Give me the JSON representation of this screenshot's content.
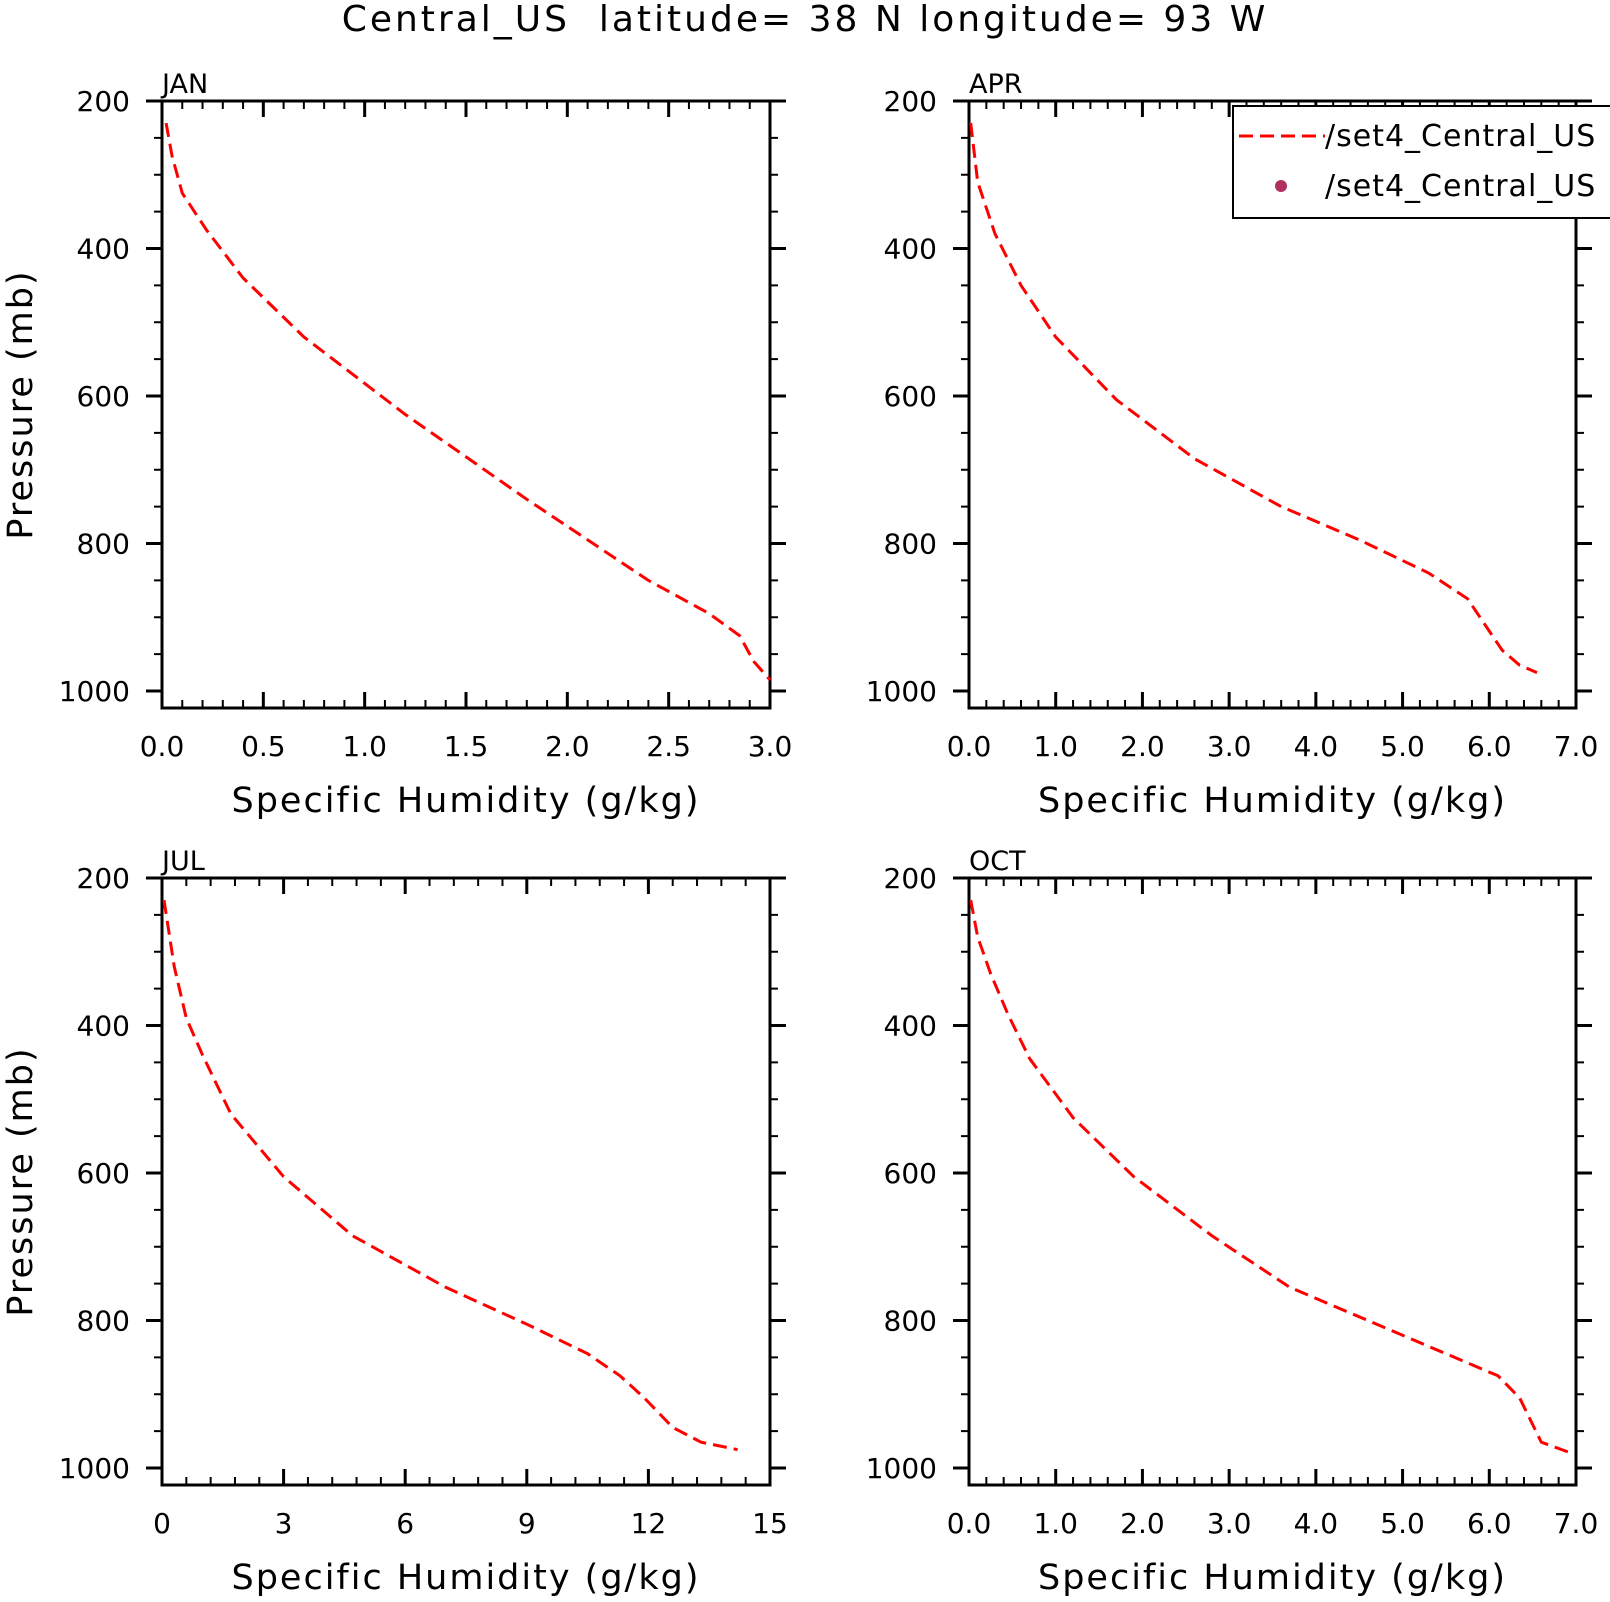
{
  "figure": {
    "title": "Central_US  latitude= 38 N longitude= 93 W"
  },
  "legend": {
    "entries": [
      {
        "label": "/set4_Central_US",
        "marker": "dashed-line",
        "color": "#ff0000"
      },
      {
        "label": "/set4_Central_US",
        "marker": "dot",
        "color": "#b03060"
      }
    ]
  },
  "chart_data": [
    {
      "type": "line",
      "title": "JAN",
      "xlabel": "Specific Humidity (g/kg)",
      "ylabel": "Pressure (mb)",
      "xlim": [
        0,
        3.0
      ],
      "ylim": [
        200,
        1000
      ],
      "y_inverted": true,
      "xticks": [
        "0.0",
        "0.5",
        "1.0",
        "1.5",
        "2.0",
        "2.5",
        "3.0"
      ],
      "yticks": [
        "200",
        "400",
        "600",
        "800",
        "1000"
      ],
      "series": [
        {
          "color": "#ff0000",
          "style": "dashed",
          "x": [
            0.02,
            0.05,
            0.1,
            0.22,
            0.4,
            0.7,
            1.2,
            1.8,
            2.4,
            2.7,
            2.85,
            2.92,
            3.0
          ],
          "y": [
            230,
            275,
            325,
            375,
            440,
            520,
            625,
            740,
            850,
            895,
            925,
            960,
            985
          ]
        }
      ]
    },
    {
      "type": "line",
      "title": "APR",
      "xlabel": "Specific Humidity (g/kg)",
      "ylabel": "",
      "xlim": [
        0,
        7.0
      ],
      "ylim": [
        200,
        1000
      ],
      "y_inverted": true,
      "xticks": [
        "0.0",
        "1.0",
        "2.0",
        "3.0",
        "4.0",
        "5.0",
        "6.0",
        "7.0"
      ],
      "yticks": [
        "200",
        "400",
        "600",
        "800",
        "1000"
      ],
      "series": [
        {
          "color": "#ff0000",
          "style": "dashed",
          "x": [
            0.02,
            0.1,
            0.3,
            0.6,
            1.0,
            1.7,
            2.6,
            3.6,
            4.5,
            5.3,
            5.75,
            5.95,
            6.15,
            6.35,
            6.55
          ],
          "y": [
            230,
            310,
            380,
            450,
            520,
            605,
            685,
            750,
            795,
            840,
            875,
            910,
            945,
            965,
            975
          ]
        }
      ]
    },
    {
      "type": "line",
      "title": "JUL",
      "xlabel": "Specific Humidity (g/kg)",
      "ylabel": "Pressure (mb)",
      "xlim": [
        0,
        15
      ],
      "ylim": [
        200,
        1000
      ],
      "y_inverted": true,
      "xticks": [
        "0",
        "3",
        "6",
        "9",
        "12",
        "15"
      ],
      "yticks": [
        "200",
        "400",
        "600",
        "800",
        "1000"
      ],
      "series": [
        {
          "color": "#ff0000",
          "style": "dashed",
          "x": [
            0.05,
            0.3,
            0.6,
            1.0,
            1.7,
            3.0,
            4.7,
            7.0,
            9.0,
            10.5,
            11.3,
            11.9,
            12.6,
            13.3,
            14.2
          ],
          "y": [
            230,
            320,
            390,
            440,
            520,
            605,
            685,
            755,
            805,
            845,
            875,
            905,
            945,
            965,
            975
          ]
        }
      ]
    },
    {
      "type": "line",
      "title": "OCT",
      "xlabel": "Specific Humidity (g/kg)",
      "ylabel": "",
      "xlim": [
        0,
        7.0
      ],
      "ylim": [
        200,
        1000
      ],
      "y_inverted": true,
      "xticks": [
        "0.0",
        "1.0",
        "2.0",
        "3.0",
        "4.0",
        "5.0",
        "6.0",
        "7.0"
      ],
      "yticks": [
        "200",
        "400",
        "600",
        "800",
        "1000"
      ],
      "series": [
        {
          "color": "#ff0000",
          "style": "dashed",
          "x": [
            0.02,
            0.1,
            0.25,
            0.45,
            0.7,
            1.2,
            1.9,
            2.8,
            3.7,
            4.6,
            5.5,
            6.1,
            6.35,
            6.6,
            6.95
          ],
          "y": [
            230,
            280,
            330,
            385,
            445,
            525,
            605,
            685,
            755,
            800,
            845,
            875,
            905,
            965,
            980
          ]
        }
      ]
    }
  ]
}
